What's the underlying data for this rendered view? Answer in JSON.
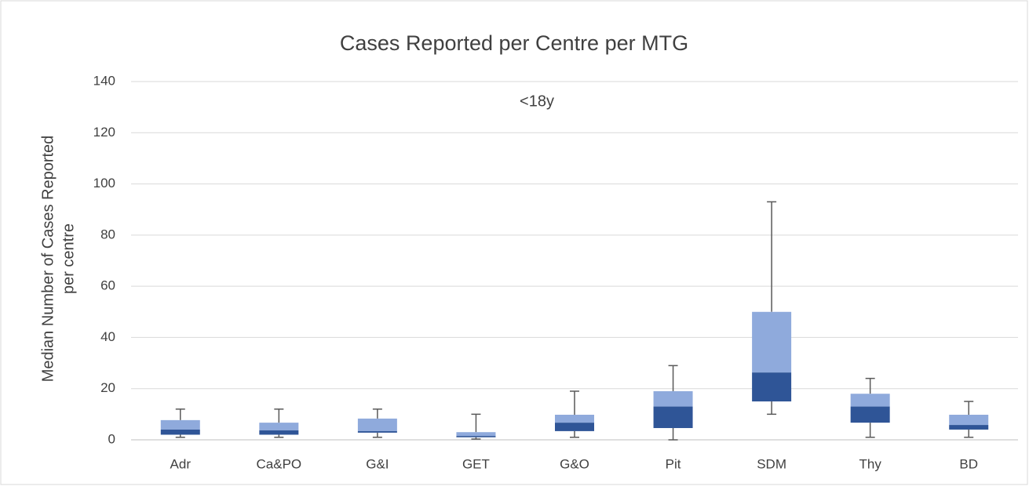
{
  "chart_data": {
    "type": "box",
    "title": "Cases Reported per Centre per MTG",
    "annotation": "<18y",
    "ylabel": [
      "Median Number of Cases Reported",
      "per centre"
    ],
    "categories": [
      "Adr",
      "Ca&PO",
      "G&I",
      "GET",
      "G&O",
      "Pit",
      "SDM",
      "Thy",
      "BD"
    ],
    "min": [
      1,
      1,
      1,
      0.3,
      1,
      0,
      10,
      1,
      1
    ],
    "q1": [
      2,
      2,
      2.8,
      1,
      3.4,
      4.6,
      15,
      6.7,
      4
    ],
    "median": [
      4,
      3.7,
      3.4,
      1.5,
      6.7,
      13,
      26.3,
      13,
      5.8
    ],
    "q3": [
      7.7,
      6.7,
      8.3,
      3,
      9.8,
      19,
      50,
      18,
      9.8
    ],
    "max": [
      12,
      12,
      12,
      10,
      19,
      29,
      93,
      24,
      15
    ],
    "lower_color": "#2f5597",
    "upper_color": "#8faadc",
    "whisker_color": "#595959",
    "ylim": [
      0,
      140
    ],
    "yticks": [
      0,
      20,
      40,
      60,
      80,
      100,
      120,
      140
    ],
    "grid": true
  }
}
